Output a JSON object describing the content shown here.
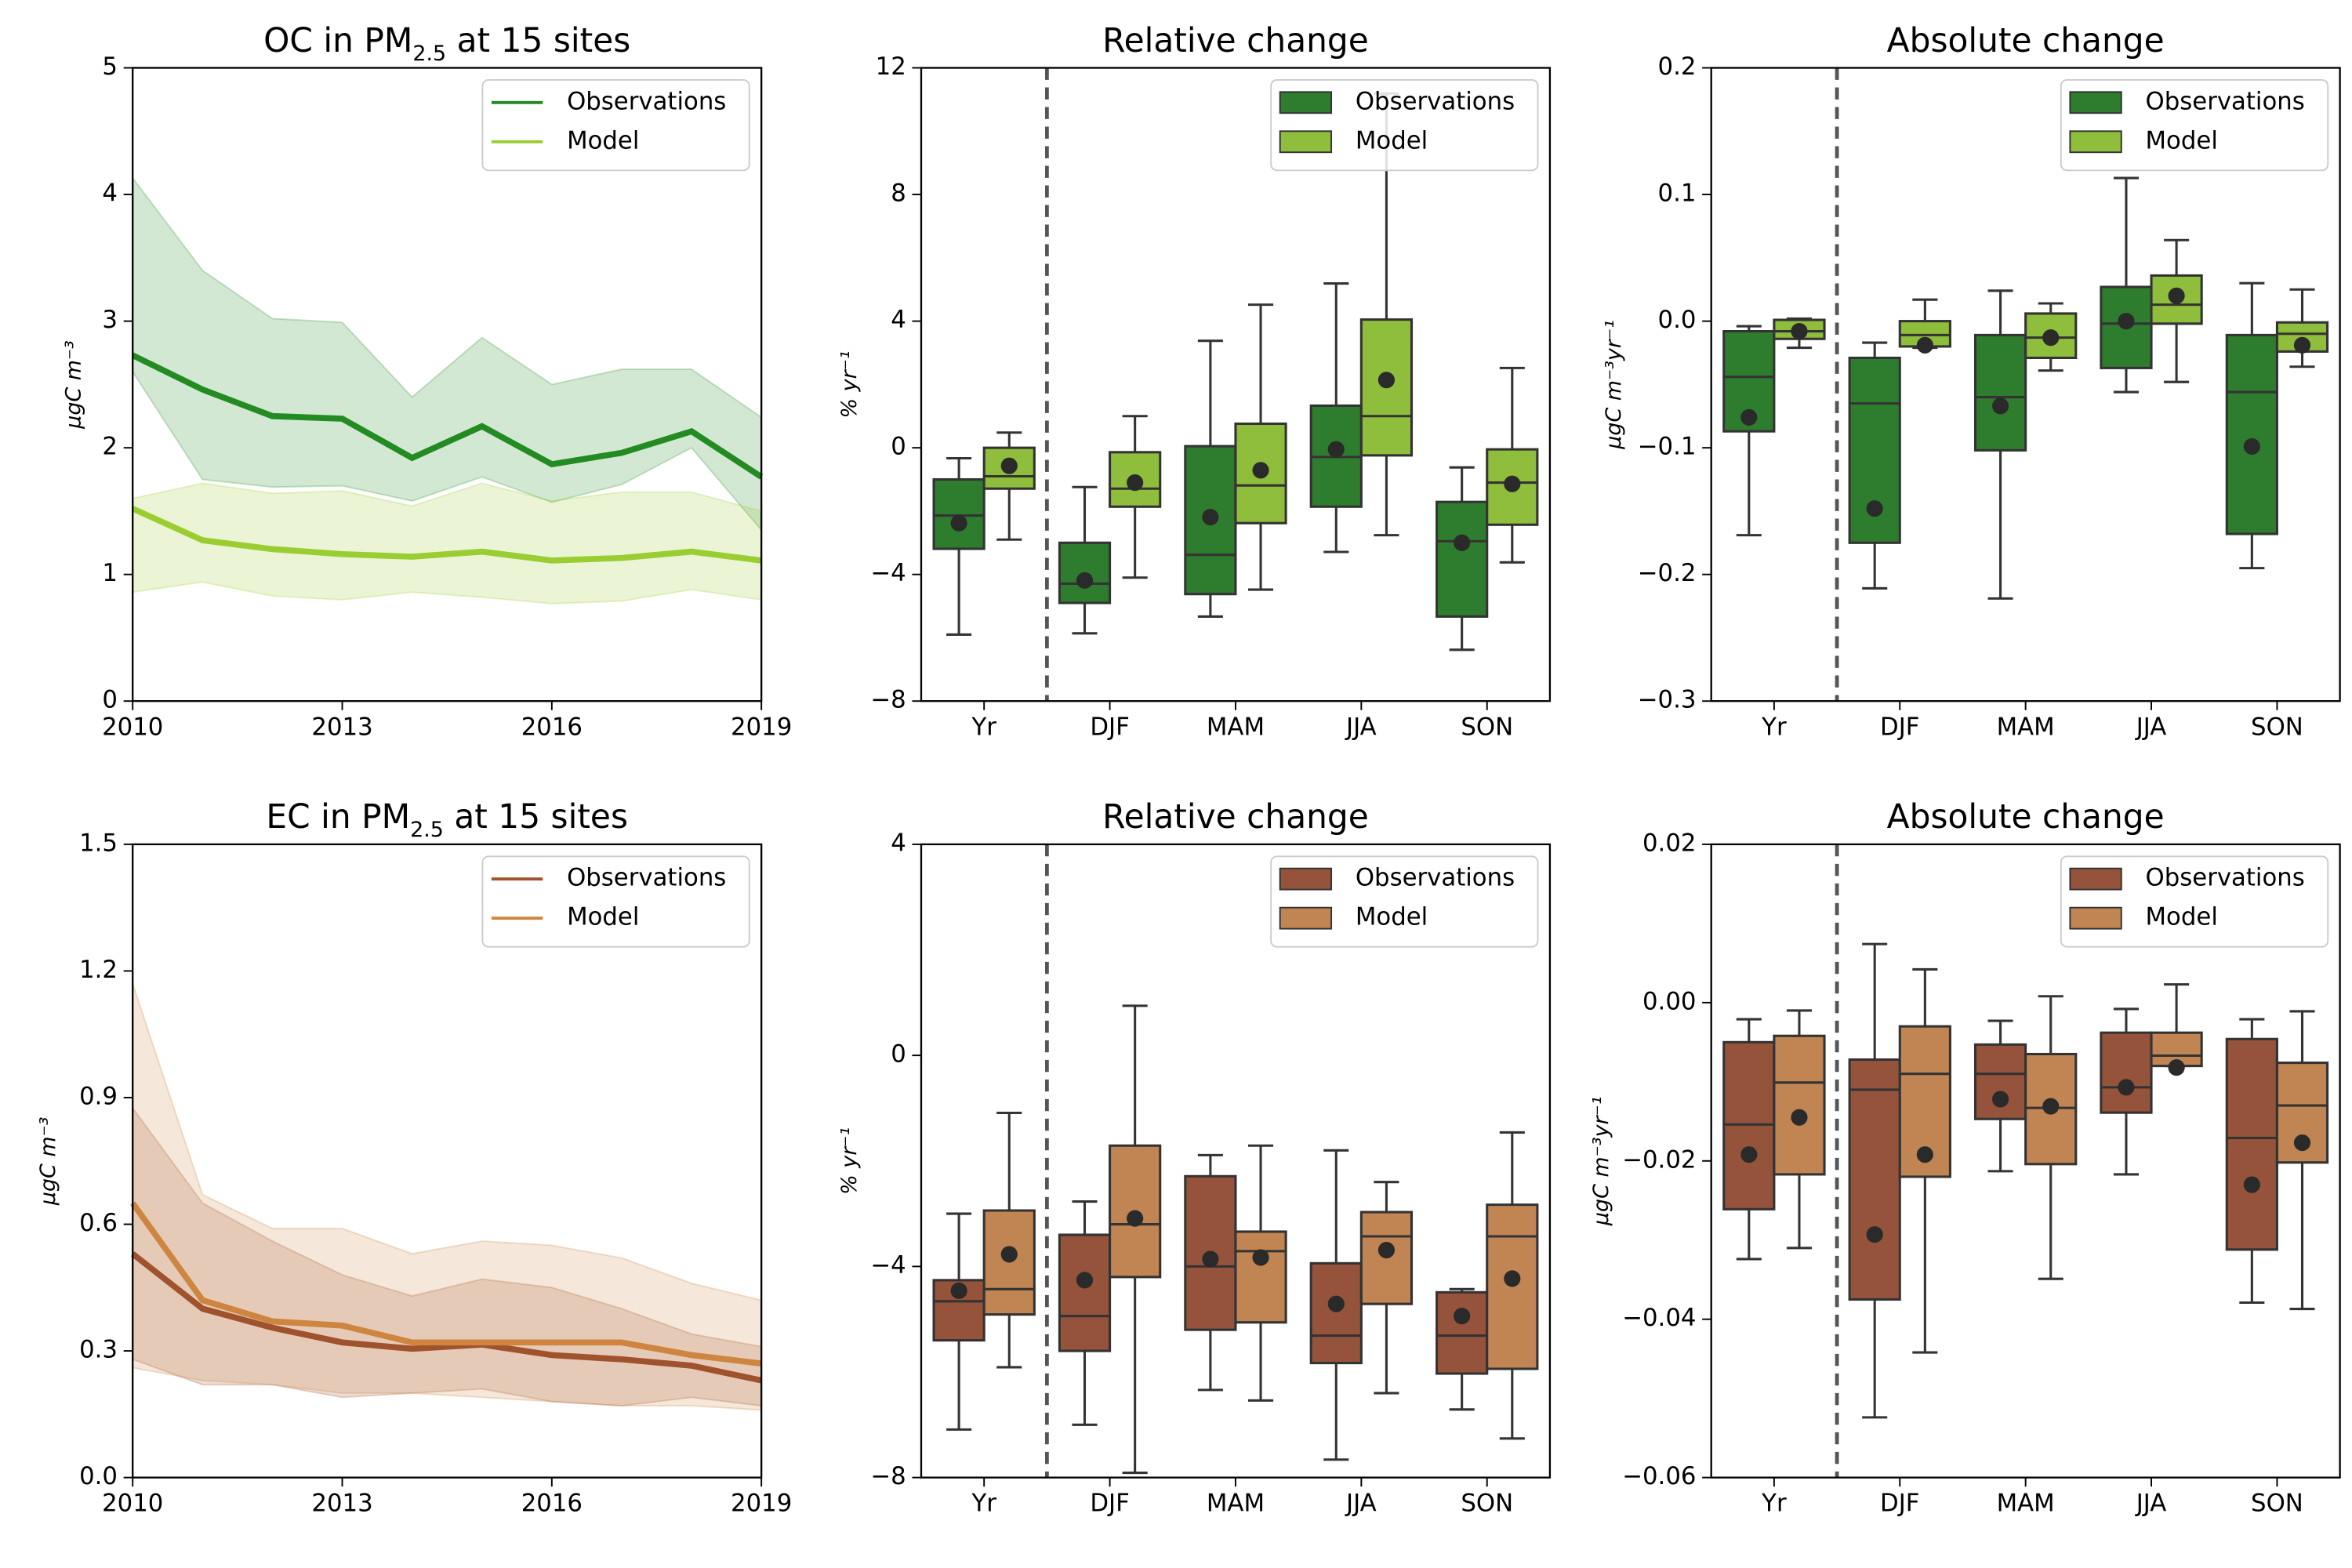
{
  "chart_data": [
    {
      "type": "line",
      "title": [
        "OC in PM",
        "2.5",
        " at 15 sites"
      ],
      "ylabel": "µgC m⁻³",
      "x": [
        2010,
        2011,
        2012,
        2013,
        2014,
        2015,
        2016,
        2017,
        2018,
        2019
      ],
      "xlim": [
        2010,
        2019
      ],
      "xticks": [
        2010,
        2013,
        2016,
        2019
      ],
      "ylim": [
        0,
        5
      ],
      "yticks": [
        0,
        1,
        2,
        3,
        4,
        5
      ],
      "legend": "upper right",
      "series": [
        {
          "name": "Observations",
          "color": "#228b22",
          "values": [
            2.73,
            2.46,
            2.25,
            2.23,
            1.92,
            2.17,
            1.87,
            1.96,
            2.13,
            1.77
          ],
          "band_low": [
            2.6,
            1.75,
            1.69,
            1.7,
            1.58,
            1.77,
            1.57,
            1.71,
            2.0,
            1.35
          ],
          "band_high": [
            4.13,
            3.4,
            3.02,
            2.99,
            2.4,
            2.87,
            2.5,
            2.62,
            2.62,
            2.24
          ]
        },
        {
          "name": "Model",
          "color": "#9acd32",
          "values": [
            1.52,
            1.27,
            1.2,
            1.16,
            1.14,
            1.18,
            1.11,
            1.13,
            1.18,
            1.11
          ],
          "band_low": [
            0.86,
            0.94,
            0.83,
            0.8,
            0.86,
            0.82,
            0.77,
            0.79,
            0.88,
            0.8
          ],
          "band_high": [
            1.6,
            1.72,
            1.64,
            1.66,
            1.54,
            1.72,
            1.58,
            1.65,
            1.65,
            1.5
          ]
        }
      ]
    },
    {
      "type": "box",
      "title": [
        "Relative change"
      ],
      "ylabel": "% yr⁻¹",
      "categories": [
        "Yr",
        "DJF",
        "MAM",
        "JJA",
        "SON"
      ],
      "ylim": [
        -8,
        12
      ],
      "yticks": [
        {
          "value": -8,
          "label": "−8"
        },
        {
          "value": -4,
          "label": "−4"
        },
        0,
        4,
        8,
        12
      ],
      "legend": "upper right",
      "series": [
        {
          "name": "Observations",
          "color": "#2e7d2e",
          "low": [
            -5.9,
            -5.86,
            -5.33,
            -3.29,
            -6.38
          ],
          "q1": [
            -3.19,
            -4.9,
            -4.62,
            -1.86,
            -5.33
          ],
          "median": [
            -2.14,
            -4.29,
            -3.38,
            -0.29,
            -2.95
          ],
          "q3": [
            -1.0,
            -3.0,
            0.05,
            1.33,
            -1.71
          ],
          "high": [
            -0.33,
            -1.24,
            3.38,
            5.19,
            -0.62
          ],
          "mean": [
            -2.38,
            -4.19,
            -2.19,
            -0.05,
            -3.0
          ]
        },
        {
          "name": "Model",
          "color": "#8fbd3c",
          "low": [
            -2.9,
            -4.1,
            -4.48,
            -2.76,
            -3.62
          ],
          "q1": [
            -1.29,
            -1.86,
            -2.38,
            -0.24,
            -2.43
          ],
          "median": [
            -0.9,
            -1.29,
            -1.19,
            1.0,
            -1.1
          ],
          "q3": [
            0.0,
            -0.14,
            0.76,
            4.05,
            -0.05
          ],
          "high": [
            0.48,
            1.0,
            4.52,
            11.19,
            2.52
          ],
          "mean": [
            -0.57,
            -1.1,
            -0.71,
            2.14,
            -1.14
          ]
        }
      ]
    },
    {
      "type": "box",
      "title": [
        "Absolute change"
      ],
      "ylabel": "µgC m⁻³yr⁻¹",
      "categories": [
        "Yr",
        "DJF",
        "MAM",
        "JJA",
        "SON"
      ],
      "ylim": [
        -0.3,
        0.2
      ],
      "yticks": [
        {
          "value": -0.3,
          "label": "−0.3"
        },
        {
          "value": -0.2,
          "label": "−0.2"
        },
        {
          "value": -0.1,
          "label": "−0.1"
        },
        {
          "value": 0,
          "label": "0.0"
        },
        0.1,
        0.2
      ],
      "legend": "upper right",
      "series": [
        {
          "name": "Observations",
          "color": "#2e7d2e",
          "low": [
            -0.169,
            -0.211,
            -0.219,
            -0.056,
            -0.195
          ],
          "q1": [
            -0.087,
            -0.175,
            -0.102,
            -0.037,
            -0.168
          ],
          "median": [
            -0.044,
            -0.065,
            -0.06,
            -0.002,
            -0.056
          ],
          "q3": [
            -0.008,
            -0.029,
            -0.011,
            0.027,
            -0.011
          ],
          "high": [
            -0.004,
            -0.017,
            0.024,
            0.113,
            0.03
          ],
          "mean": [
            -0.076,
            -0.148,
            -0.067,
            0.0,
            -0.099
          ]
        },
        {
          "name": "Model",
          "color": "#8fbd3c",
          "low": [
            -0.021,
            -0.021,
            -0.039,
            -0.048,
            -0.036
          ],
          "q1": [
            -0.014,
            -0.02,
            -0.029,
            -0.002,
            -0.024
          ],
          "median": [
            -0.008,
            -0.011,
            -0.013,
            0.013,
            -0.01
          ],
          "q3": [
            0.001,
            0.0,
            0.006,
            0.036,
            -0.001
          ],
          "high": [
            0.002,
            0.017,
            0.014,
            0.064,
            0.025
          ],
          "mean": [
            -0.008,
            -0.019,
            -0.013,
            0.02,
            -0.019
          ]
        }
      ]
    },
    {
      "type": "line",
      "title": [
        "EC in PM",
        "2.5",
        " at 15 sites"
      ],
      "ylabel": "µgC m⁻³",
      "x": [
        2010,
        2011,
        2012,
        2013,
        2014,
        2015,
        2016,
        2017,
        2018,
        2019
      ],
      "xlim": [
        2010,
        2019
      ],
      "xticks": [
        2010,
        2013,
        2016,
        2019
      ],
      "ylim": [
        0,
        1.5
      ],
      "yticks": [
        {
          "value": 0,
          "label": "0.0"
        },
        0.3,
        0.6,
        0.9,
        1.2,
        1.5
      ],
      "legend": "upper right",
      "series": [
        {
          "name": "Observations",
          "color": "#a0522d",
          "values": [
            0.53,
            0.4,
            0.355,
            0.32,
            0.305,
            0.315,
            0.29,
            0.28,
            0.265,
            0.23
          ],
          "band_low": [
            0.28,
            0.22,
            0.22,
            0.19,
            0.2,
            0.21,
            0.18,
            0.17,
            0.19,
            0.17
          ],
          "band_high": [
            0.875,
            0.65,
            0.56,
            0.48,
            0.43,
            0.47,
            0.45,
            0.4,
            0.34,
            0.31
          ]
        },
        {
          "name": "Model",
          "color": "#cd853f",
          "values": [
            0.65,
            0.42,
            0.37,
            0.36,
            0.32,
            0.32,
            0.32,
            0.32,
            0.29,
            0.27
          ],
          "band_low": [
            0.26,
            0.23,
            0.22,
            0.2,
            0.2,
            0.19,
            0.18,
            0.17,
            0.17,
            0.16
          ],
          "band_high": [
            1.17,
            0.67,
            0.59,
            0.59,
            0.53,
            0.56,
            0.55,
            0.52,
            0.46,
            0.42
          ]
        }
      ]
    },
    {
      "type": "box",
      "title": [
        "Relative change"
      ],
      "ylabel": "% yr⁻¹",
      "categories": [
        "Yr",
        "DJF",
        "MAM",
        "JJA",
        "SON"
      ],
      "ylim": [
        -8,
        4
      ],
      "yticks": [
        {
          "value": -8,
          "label": "−8"
        },
        {
          "value": -4,
          "label": "−4"
        },
        0,
        4
      ],
      "legend": "upper right",
      "series": [
        {
          "name": "Observations",
          "color": "#94533a",
          "low": [
            -7.09,
            -7.0,
            -6.34,
            -7.66,
            -6.71
          ],
          "q1": [
            -5.4,
            -5.6,
            -5.2,
            -5.83,
            -6.03
          ],
          "median": [
            -4.66,
            -4.94,
            -4.0,
            -5.31,
            -5.31
          ],
          "q3": [
            -4.26,
            -3.4,
            -2.29,
            -3.94,
            -4.49
          ],
          "high": [
            -3.0,
            -2.77,
            -1.89,
            -1.8,
            -4.43
          ],
          "mean": [
            -4.46,
            -4.26,
            -3.86,
            -4.71,
            -4.94
          ]
        },
        {
          "name": "Model",
          "color": "#c08553",
          "low": [
            -5.91,
            -7.91,
            -6.54,
            -6.4,
            -7.26
          ],
          "q1": [
            -4.91,
            -4.2,
            -5.06,
            -4.71,
            -5.94
          ],
          "median": [
            -4.43,
            -3.2,
            -3.71,
            -3.43,
            -3.43
          ],
          "q3": [
            -2.94,
            -1.71,
            -3.34,
            -2.97,
            -2.83
          ],
          "high": [
            -1.09,
            0.94,
            -1.71,
            -2.4,
            -1.46
          ],
          "mean": [
            -3.77,
            -3.09,
            -3.83,
            -3.69,
            -4.23
          ]
        }
      ]
    },
    {
      "type": "box",
      "title": [
        "Absolute change"
      ],
      "ylabel": "µgC m⁻³yr⁻¹",
      "categories": [
        "Yr",
        "DJF",
        "MAM",
        "JJA",
        "SON"
      ],
      "ylim": [
        -0.06,
        0.02
      ],
      "yticks": [
        {
          "value": -0.06,
          "label": "−0.06"
        },
        {
          "value": -0.04,
          "label": "−0.04"
        },
        {
          "value": -0.02,
          "label": "−0.02"
        },
        {
          "value": 0,
          "label": "0.00"
        },
        0.02
      ],
      "legend": "upper right",
      "series": [
        {
          "name": "Observations",
          "color": "#94533a",
          "low": [
            -0.0324,
            -0.0524,
            -0.0213,
            -0.0217,
            -0.0379
          ],
          "q1": [
            -0.0261,
            -0.0375,
            -0.0147,
            -0.0139,
            -0.0312
          ],
          "median": [
            -0.0154,
            -0.011,
            -0.009,
            -0.0107,
            -0.0171
          ],
          "q3": [
            -0.005,
            -0.0072,
            -0.0053,
            -0.0038,
            -0.0046
          ],
          "high": [
            -0.0021,
            0.0074,
            -0.0023,
            -0.0008,
            -0.0021
          ],
          "mean": [
            -0.0192,
            -0.0293,
            -0.0122,
            -0.0107,
            -0.023
          ]
        },
        {
          "name": "Model",
          "color": "#c08553",
          "low": [
            -0.031,
            -0.0442,
            -0.0349,
            -0.008,
            -0.0387
          ],
          "q1": [
            -0.0217,
            -0.022,
            -0.0204,
            -0.008,
            -0.0202
          ],
          "median": [
            -0.0101,
            -0.009,
            -0.0133,
            -0.0067,
            -0.013
          ],
          "q3": [
            -0.0042,
            -0.003,
            -0.0065,
            -0.0038,
            -0.0076
          ],
          "high": [
            -0.001,
            0.0042,
            0.0008,
            0.0023,
            -0.0011
          ],
          "mean": [
            -0.0145,
            -0.0192,
            -0.0131,
            -0.0082,
            -0.0177
          ]
        }
      ]
    }
  ]
}
